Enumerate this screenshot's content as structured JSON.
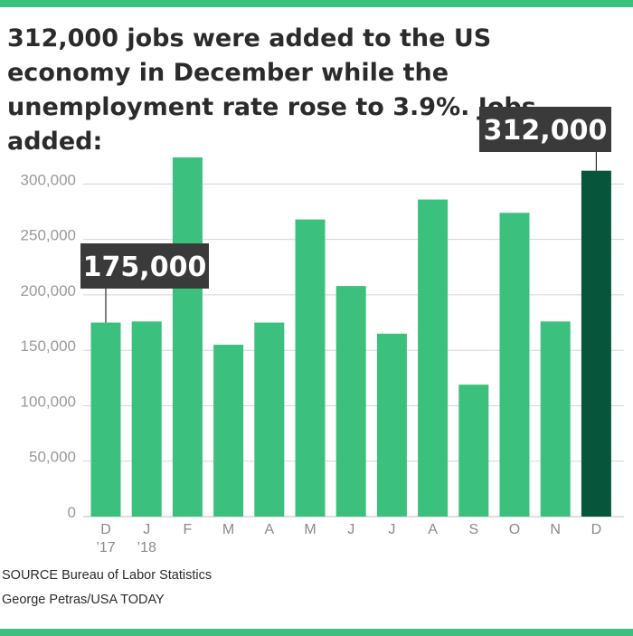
{
  "title": "312,000 jobs were added to the US economy in December while the unemployment rate rose to 3.9%. Jobs added:",
  "source": "SOURCE Bureau of Labor Statistics",
  "credit": "George Petras/USA TODAY",
  "colors": {
    "band": "#3cc07e",
    "bar": "#3cc07e",
    "highlight_bar": "#07553b",
    "callout_bg": "#3a3a3a",
    "callout_text": "#ffffff",
    "grid": "#d5d5d5",
    "tick_text": "#9a9a9a",
    "month_text": "#8a8a8a"
  },
  "chart_data": {
    "type": "bar",
    "categories": [
      "D\n’17",
      "J\n’18",
      "F",
      "M",
      "A",
      "M",
      "J",
      "J",
      "A",
      "S",
      "O",
      "N",
      "D"
    ],
    "values": [
      175000,
      176000,
      324000,
      155000,
      175000,
      268000,
      208000,
      165000,
      286000,
      119000,
      274000,
      176000,
      312000
    ],
    "highlight_index": 12,
    "ylim": [
      0,
      325000
    ],
    "yticks": [
      0,
      50000,
      100000,
      150000,
      200000,
      250000,
      300000
    ],
    "ytick_labels": [
      "0",
      "50,000",
      "100,000",
      "150,000",
      "200,000",
      "250,000",
      "300,000"
    ],
    "grid": true,
    "annotations": [
      {
        "text": "175,000",
        "bar_index": 0
      },
      {
        "text": "312,000",
        "bar_index": 12
      }
    ]
  }
}
